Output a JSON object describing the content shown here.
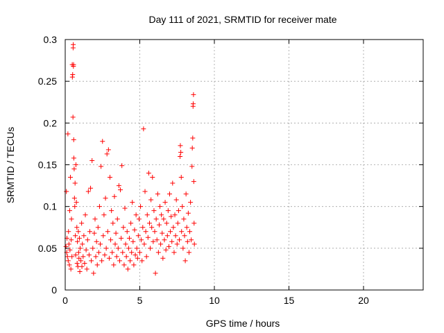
{
  "chart_data": {
    "type": "scatter",
    "title": "Day 111 of 2021, SRMTID for receiver mate",
    "xlabel": "GPS time / hours",
    "ylabel": "SRMTID / TECUs",
    "xlim": [
      0,
      24
    ],
    "ylim": [
      0,
      0.3
    ],
    "xticks": [
      0,
      5,
      10,
      15,
      20
    ],
    "xtick_labels": [
      "0",
      "5",
      "10",
      "15",
      "20"
    ],
    "yticks": [
      0,
      0.05,
      0.1,
      0.15,
      0.2,
      0.25,
      0.3
    ],
    "ytick_labels": [
      "0",
      "0.05",
      "0.1",
      "0.15",
      "0.2",
      "0.25",
      "0.3"
    ],
    "grid": true,
    "marker": "plus",
    "series": [
      {
        "color": "#ff0000",
        "points": [
          [
            0.05,
            0.052
          ],
          [
            0.08,
            0.118
          ],
          [
            0.1,
            0.045
          ],
          [
            0.12,
            0.062
          ],
          [
            0.15,
            0.04
          ],
          [
            0.18,
            0.187
          ],
          [
            0.2,
            0.035
          ],
          [
            0.22,
            0.07
          ],
          [
            0.25,
            0.055
          ],
          [
            0.28,
            0.03
          ],
          [
            0.3,
            0.095
          ],
          [
            0.32,
            0.048
          ],
          [
            0.35,
            0.135
          ],
          [
            0.38,
            0.025
          ],
          [
            0.4,
            0.06
          ],
          [
            0.42,
            0.085
          ],
          [
            0.45,
            0.04
          ],
          [
            0.47,
            0.27
          ],
          [
            0.48,
            0.255
          ],
          [
            0.5,
            0.258
          ],
          [
            0.52,
            0.207
          ],
          [
            0.53,
            0.29
          ],
          [
            0.54,
            0.294
          ],
          [
            0.55,
            0.268
          ],
          [
            0.56,
            0.27
          ],
          [
            0.57,
            0.18
          ],
          [
            0.58,
            0.158
          ],
          [
            0.6,
            0.145
          ],
          [
            0.62,
            0.11
          ],
          [
            0.64,
            0.1
          ],
          [
            0.66,
            0.128
          ],
          [
            0.68,
            0.065
          ],
          [
            0.7,
            0.042
          ],
          [
            0.72,
            0.15
          ],
          [
            0.75,
            0.105
          ],
          [
            0.78,
            0.075
          ],
          [
            0.8,
            0.032
          ],
          [
            0.82,
            0.058
          ],
          [
            0.85,
            0.028
          ],
          [
            0.88,
            0.07
          ],
          [
            0.9,
            0.045
          ],
          [
            0.92,
            0.038
          ],
          [
            0.95,
            0.062
          ],
          [
            0.98,
            0.022
          ],
          [
            1.0,
            0.05
          ],
          [
            1.05,
            0.035
          ],
          [
            1.1,
            0.08
          ],
          [
            1.12,
            0.028
          ],
          [
            1.15,
            0.055
          ],
          [
            1.2,
            0.04
          ],
          [
            1.25,
            0.065
          ],
          [
            1.3,
            0.032
          ],
          [
            1.35,
            0.09
          ],
          [
            1.4,
            0.048
          ],
          [
            1.45,
            0.025
          ],
          [
            1.5,
            0.06
          ],
          [
            1.55,
            0.118
          ],
          [
            1.6,
            0.042
          ],
          [
            1.65,
            0.07
          ],
          [
            1.7,
            0.122
          ],
          [
            1.75,
            0.035
          ],
          [
            1.8,
            0.155
          ],
          [
            1.85,
            0.05
          ],
          [
            1.9,
            0.02
          ],
          [
            1.95,
            0.068
          ],
          [
            2.0,
            0.085
          ],
          [
            2.05,
            0.04
          ],
          [
            2.1,
            0.058
          ],
          [
            2.15,
            0.03
          ],
          [
            2.2,
            0.075
          ],
          [
            2.25,
            0.045
          ],
          [
            2.3,
            0.1
          ],
          [
            2.35,
            0.055
          ],
          [
            2.4,
            0.148
          ],
          [
            2.45,
            0.035
          ],
          [
            2.5,
            0.178
          ],
          [
            2.55,
            0.065
          ],
          [
            2.6,
            0.09
          ],
          [
            2.65,
            0.042
          ],
          [
            2.7,
            0.11
          ],
          [
            2.75,
            0.05
          ],
          [
            2.8,
            0.163
          ],
          [
            2.85,
            0.07
          ],
          [
            2.9,
            0.168
          ],
          [
            2.95,
            0.038
          ],
          [
            3.0,
            0.135
          ],
          [
            3.05,
            0.06
          ],
          [
            3.1,
            0.095
          ],
          [
            3.15,
            0.045
          ],
          [
            3.2,
            0.08
          ],
          [
            3.25,
            0.03
          ],
          [
            3.3,
            0.112
          ],
          [
            3.35,
            0.055
          ],
          [
            3.4,
            0.068
          ],
          [
            3.45,
            0.04
          ],
          [
            3.5,
            0.085
          ],
          [
            3.55,
            0.05
          ],
          [
            3.6,
            0.125
          ],
          [
            3.65,
            0.035
          ],
          [
            3.7,
            0.12
          ],
          [
            3.75,
            0.062
          ],
          [
            3.8,
            0.149
          ],
          [
            3.85,
            0.045
          ],
          [
            3.9,
            0.075
          ],
          [
            3.95,
            0.03
          ],
          [
            4.0,
            0.098
          ],
          [
            4.05,
            0.055
          ],
          [
            4.1,
            0.04
          ],
          [
            4.15,
            0.07
          ],
          [
            4.2,
            0.025
          ],
          [
            4.25,
            0.05
          ],
          [
            4.3,
            0.062
          ],
          [
            4.35,
            0.035
          ],
          [
            4.4,
            0.08
          ],
          [
            4.45,
            0.045
          ],
          [
            4.5,
            0.105
          ],
          [
            4.55,
            0.058
          ],
          [
            4.6,
            0.03
          ],
          [
            4.65,
            0.072
          ],
          [
            4.7,
            0.042
          ],
          [
            4.75,
            0.09
          ],
          [
            4.8,
            0.05
          ],
          [
            4.85,
            0.038
          ],
          [
            4.9,
            0.065
          ],
          [
            4.95,
            0.085
          ],
          [
            5.0,
            0.045
          ],
          [
            5.05,
            0.1
          ],
          [
            5.1,
            0.06
          ],
          [
            5.15,
            0.035
          ],
          [
            5.2,
            0.075
          ],
          [
            5.25,
            0.193
          ],
          [
            5.3,
            0.055
          ],
          [
            5.35,
            0.118
          ],
          [
            5.4,
            0.07
          ],
          [
            5.45,
            0.04
          ],
          [
            5.5,
            0.09
          ],
          [
            5.55,
            0.063
          ],
          [
            5.6,
            0.14
          ],
          [
            5.65,
            0.08
          ],
          [
            5.7,
            0.05
          ],
          [
            5.75,
            0.108
          ],
          [
            5.8,
            0.075
          ],
          [
            5.85,
            0.135
          ],
          [
            5.9,
            0.058
          ],
          [
            5.95,
            0.095
          ],
          [
            6.0,
            0.07
          ],
          [
            6.05,
            0.02
          ],
          [
            6.1,
            0.085
          ],
          [
            6.15,
            0.06
          ],
          [
            6.2,
            0.115
          ],
          [
            6.25,
            0.045
          ],
          [
            6.3,
            0.078
          ],
          [
            6.35,
            0.1
          ],
          [
            6.4,
            0.055
          ],
          [
            6.45,
            0.09
          ],
          [
            6.5,
            0.068
          ],
          [
            6.55,
            0.038
          ],
          [
            6.6,
            0.085
          ],
          [
            6.65,
            0.06
          ],
          [
            6.7,
            0.105
          ],
          [
            6.75,
            0.048
          ],
          [
            6.8,
            0.08
          ],
          [
            6.85,
            0.065
          ],
          [
            6.9,
            0.095
          ],
          [
            6.95,
            0.052
          ],
          [
            7.0,
            0.115
          ],
          [
            7.05,
            0.07
          ],
          [
            7.1,
            0.088
          ],
          [
            7.15,
            0.058
          ],
          [
            7.2,
            0.128
          ],
          [
            7.25,
            0.075
          ],
          [
            7.3,
            0.045
          ],
          [
            7.35,
            0.09
          ],
          [
            7.4,
            0.065
          ],
          [
            7.45,
            0.108
          ],
          [
            7.5,
            0.055
          ],
          [
            7.55,
            0.08
          ],
          [
            7.6,
            0.095
          ],
          [
            7.65,
            0.06
          ],
          [
            7.7,
            0.16
          ],
          [
            7.72,
            0.173
          ],
          [
            7.75,
            0.165
          ],
          [
            7.78,
            0.135
          ],
          [
            7.8,
            0.07
          ],
          [
            7.85,
            0.1
          ],
          [
            7.9,
            0.05
          ],
          [
            7.95,
            0.085
          ],
          [
            8.0,
            0.065
          ],
          [
            8.05,
            0.035
          ],
          [
            8.1,
            0.115
          ],
          [
            8.15,
            0.075
          ],
          [
            8.2,
            0.058
          ],
          [
            8.25,
            0.092
          ],
          [
            8.3,
            0.045
          ],
          [
            8.35,
            0.07
          ],
          [
            8.4,
            0.105
          ],
          [
            8.45,
            0.06
          ],
          [
            8.5,
            0.148
          ],
          [
            8.52,
            0.17
          ],
          [
            8.55,
            0.182
          ],
          [
            8.57,
            0.22
          ],
          [
            8.58,
            0.223
          ],
          [
            8.6,
            0.234
          ],
          [
            8.62,
            0.13
          ],
          [
            8.64,
            0.08
          ],
          [
            8.66,
            0.055
          ]
        ]
      }
    ]
  }
}
